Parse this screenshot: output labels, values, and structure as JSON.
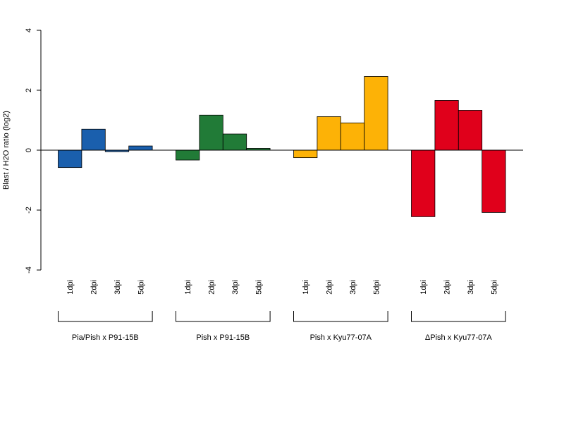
{
  "chart_data": {
    "type": "bar",
    "title": "",
    "xlabel": "",
    "ylabel": "Blast / H2O ratio (log2)",
    "ylim": [
      -4,
      4
    ],
    "yticks": [
      -4,
      -2,
      0,
      2,
      4
    ],
    "grid": false,
    "legend": "none",
    "groups": [
      {
        "name": "Pia/Pish x P91-15B",
        "color": "#1a5fad",
        "categories": [
          "1dpi",
          "2dpi",
          "3dpi",
          "5dpi"
        ],
        "values": [
          -0.58,
          0.7,
          -0.05,
          0.14
        ]
      },
      {
        "name": "Pish x P91-15B",
        "color": "#217b37",
        "categories": [
          "1dpi",
          "2dpi",
          "3dpi",
          "5dpi"
        ],
        "values": [
          -0.33,
          1.17,
          0.54,
          0.06
        ]
      },
      {
        "name": "Pish x Kyu77-07A",
        "color": "#fdb206",
        "categories": [
          "1dpi",
          "2dpi",
          "3dpi",
          "5dpi"
        ],
        "values": [
          -0.25,
          1.12,
          0.91,
          2.46
        ]
      },
      {
        "name": "ΔPish x Kyu77-07A",
        "color": "#e0001b",
        "categories": [
          "1dpi",
          "2dpi",
          "3dpi",
          "5dpi"
        ],
        "values": [
          -2.22,
          1.66,
          1.33,
          -2.08
        ]
      }
    ]
  }
}
